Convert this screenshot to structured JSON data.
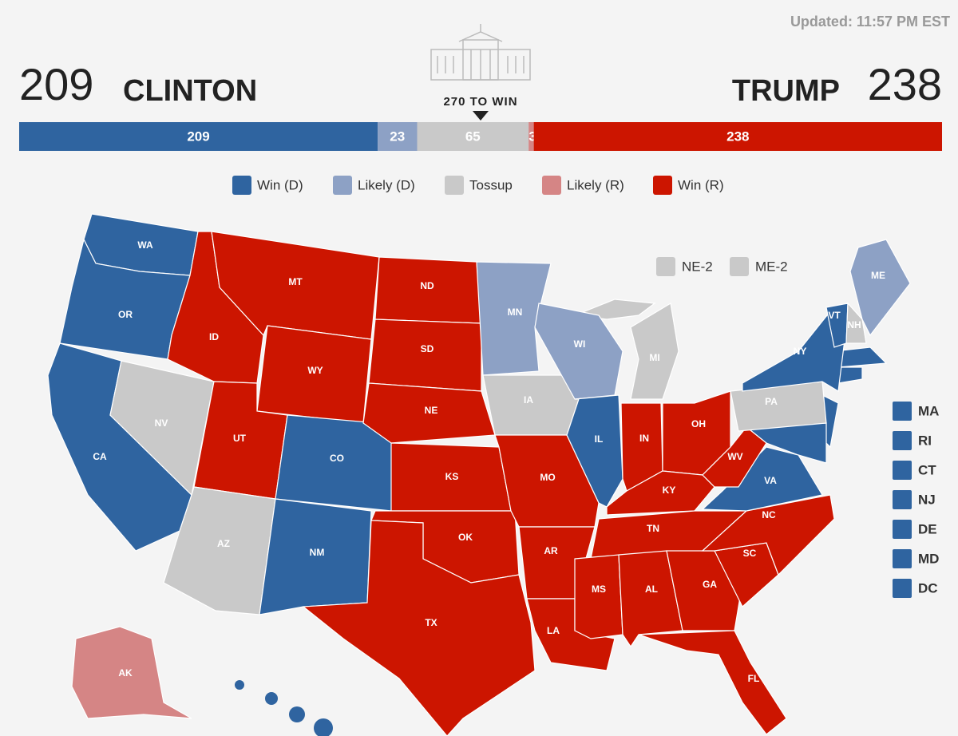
{
  "updated": "Updated: 11:57 PM EST",
  "clinton": {
    "name": "CLINTON"
  },
  "trump": {
    "name": "TRUMP"
  },
  "threshold": "270 TO WIN",
  "bar": [
    {
      "value": 209,
      "color": "#2f64a0"
    },
    {
      "value": 23,
      "color": "#8da1c5"
    },
    {
      "value": 65,
      "color": "#c9c9c9"
    },
    {
      "value": 3,
      "color": "#d58585"
    },
    {
      "value": 238,
      "color": "#cc1500"
    }
  ],
  "legend": [
    {
      "label": "Win (D)",
      "color": "#2f64a0"
    },
    {
      "label": "Likely (D)",
      "color": "#8da1c5"
    },
    {
      "label": "Tossup",
      "color": "#c9c9c9"
    },
    {
      "label": "Likely (R)",
      "color": "#d58585"
    },
    {
      "label": "Win (R)",
      "color": "#cc1500"
    }
  ],
  "districts": [
    "NE-2",
    "ME-2"
  ],
  "small_states": [
    "MA",
    "RI",
    "CT",
    "NJ",
    "DE",
    "MD",
    "DC"
  ],
  "states": [
    {
      "label": "WA",
      "color": "#2f64a0"
    },
    {
      "label": "OR",
      "color": "#2f64a0"
    },
    {
      "label": "CA",
      "color": "#2f64a0"
    },
    {
      "label": "NV",
      "color": "#c9c9c9"
    },
    {
      "label": "ID",
      "color": "#cc1500"
    },
    {
      "label": "MT",
      "color": "#cc1500"
    },
    {
      "label": "WY",
      "color": "#cc1500"
    },
    {
      "label": "UT",
      "color": "#cc1500"
    },
    {
      "label": "CO",
      "color": "#2f64a0"
    },
    {
      "label": "AZ",
      "color": "#c9c9c9"
    },
    {
      "label": "NM",
      "color": "#2f64a0"
    },
    {
      "label": "ND",
      "color": "#cc1500"
    },
    {
      "label": "SD",
      "color": "#cc1500"
    },
    {
      "label": "NE",
      "color": "#cc1500"
    },
    {
      "label": "KS",
      "color": "#cc1500"
    },
    {
      "label": "OK",
      "color": "#cc1500"
    },
    {
      "label": "TX",
      "color": "#cc1500"
    },
    {
      "label": "MN",
      "color": "#8da1c5"
    },
    {
      "label": "IA",
      "color": "#c9c9c9"
    },
    {
      "label": "MO",
      "color": "#cc1500"
    },
    {
      "label": "AR",
      "color": "#cc1500"
    },
    {
      "label": "LA",
      "color": "#cc1500"
    },
    {
      "label": "WI",
      "color": "#8da1c5"
    },
    {
      "label": "IL",
      "color": "#2f64a0"
    },
    {
      "label": "MI",
      "color": "#c9c9c9"
    },
    {
      "label": "IN",
      "color": "#cc1500"
    },
    {
      "label": "OH",
      "color": "#cc1500"
    },
    {
      "label": "KY",
      "color": "#cc1500"
    },
    {
      "label": "TN",
      "color": "#cc1500"
    },
    {
      "label": "MS",
      "color": "#cc1500"
    },
    {
      "label": "AL",
      "color": "#cc1500"
    },
    {
      "label": "GA",
      "color": "#cc1500"
    },
    {
      "label": "FL",
      "color": "#cc1500"
    },
    {
      "label": "SC",
      "color": "#cc1500"
    },
    {
      "label": "NC",
      "color": "#cc1500"
    },
    {
      "label": "VA",
      "color": "#2f64a0"
    },
    {
      "label": "WV",
      "color": "#cc1500"
    },
    {
      "label": "PA",
      "color": "#c9c9c9"
    },
    {
      "label": "NY",
      "color": "#2f64a0"
    },
    {
      "label": "VT",
      "color": "#2f64a0"
    },
    {
      "label": "NH",
      "color": "#c9c9c9"
    },
    {
      "label": "ME",
      "color": "#8da1c5"
    },
    {
      "label": "AK",
      "color": "#d58585"
    }
  ]
}
